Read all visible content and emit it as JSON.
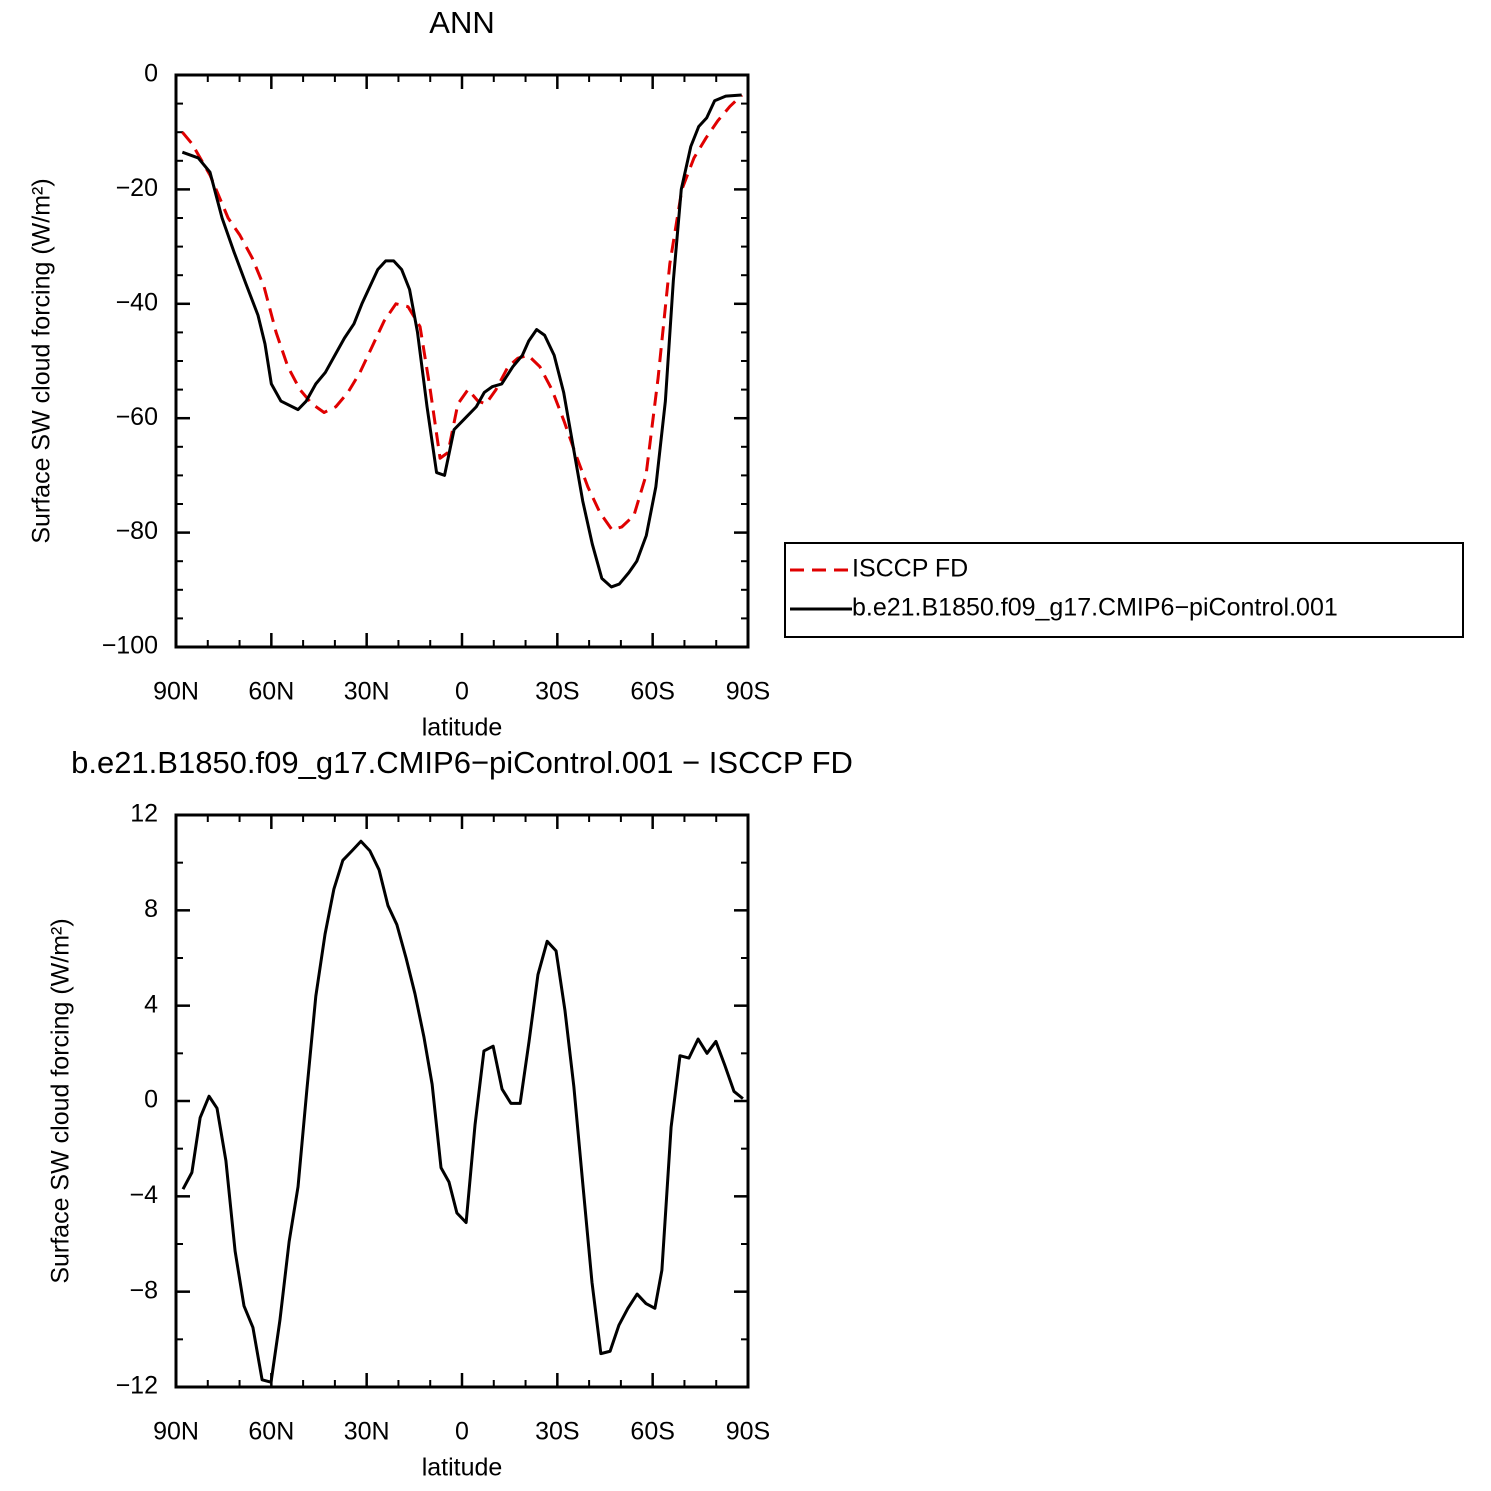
{
  "chart_data": [
    {
      "type": "line",
      "title": "ANN",
      "xlabel": "latitude",
      "ylabel": "Surface SW cloud forcing (W/m²)",
      "xlim": [
        90,
        -90
      ],
      "ylim": [
        -100,
        0
      ],
      "xticks": [
        {
          "value": 90,
          "label": "90N"
        },
        {
          "value": 60,
          "label": "60N"
        },
        {
          "value": 30,
          "label": "30N"
        },
        0,
        {
          "value": -30,
          "label": "30S"
        },
        {
          "value": -60,
          "label": "60S"
        },
        {
          "value": -90,
          "label": "90S"
        }
      ],
      "yticks": [
        0,
        {
          "value": -20,
          "label": "−20"
        },
        {
          "value": -40,
          "label": "−40"
        },
        {
          "value": -60,
          "label": "−60"
        },
        {
          "value": -80,
          "label": "−80"
        },
        {
          "value": -100,
          "label": "−100"
        }
      ],
      "legend": "right",
      "series": [
        {
          "name": "ISCCP FD",
          "color": "#e00000",
          "dash": true,
          "x": [
            88,
            85,
            79.3,
            73.6,
            69.9,
            66,
            62.3,
            58.5,
            54.8,
            51,
            47.2,
            43.4,
            39.7,
            35.9,
            32.1,
            28.3,
            24.5,
            20.8,
            17,
            13.2,
            10,
            6.9,
            4.4,
            1.3,
            -1.9,
            -5,
            -7.5,
            -10.7,
            -14.5,
            -17.6,
            -20.8,
            -24.5,
            -28.3,
            -32.1,
            -35.9,
            -39.6,
            -43.4,
            -47.2,
            -50.3,
            -54.1,
            -57.9,
            -61.7,
            -65.4,
            -69.2,
            -73,
            -76.8,
            -80.5,
            -84.3,
            -88.1
          ],
          "values": [
            -10,
            -12,
            -17.5,
            -25,
            -28,
            -32,
            -37,
            -45,
            -51,
            -55,
            -57.5,
            -59,
            -58,
            -55.5,
            -52,
            -47.5,
            -43,
            -40,
            -40.5,
            -44,
            -55,
            -67,
            -66,
            -57.5,
            -55,
            -57,
            -57.5,
            -55,
            -51,
            -49.5,
            -49,
            -51,
            -55,
            -60.5,
            -66.5,
            -72,
            -76.5,
            -79.5,
            -79,
            -77,
            -70,
            -53,
            -33,
            -20,
            -14.5,
            -11,
            -8,
            -5.5,
            -3.5
          ]
        },
        {
          "name": "b.e21.B1850.f09_g17.CMIP6−piControl.001",
          "color": "#000000",
          "dash": false,
          "x": [
            88,
            83,
            79.3,
            75.5,
            71.7,
            68,
            64.2,
            62,
            60,
            57,
            51.6,
            49,
            46,
            43,
            40,
            37,
            34,
            31.5,
            29,
            26.5,
            24,
            21.5,
            19,
            16.5,
            14,
            11,
            8,
            5.5,
            2.5,
            -1,
            -4.5,
            -7,
            -9.5,
            -12.5,
            -16,
            -19,
            -21,
            -23.5,
            -26,
            -29,
            -32,
            -35,
            -38,
            -41,
            -44,
            -47,
            -49.5,
            -52.5,
            -55,
            -58,
            -61,
            -64,
            -66.5,
            -69,
            -72,
            -74.5,
            -77,
            -79.5,
            -83,
            -88
          ],
          "values": [
            -13.5,
            -14.5,
            -17,
            -25,
            -31,
            -36.5,
            -42,
            -47,
            -54,
            -57,
            -58.5,
            -57,
            -54,
            -52,
            -49,
            -46,
            -43.5,
            -40,
            -37,
            -34,
            -32.5,
            -32.5,
            -34,
            -37.5,
            -45,
            -58,
            -69.5,
            -70,
            -62,
            -60,
            -58,
            -55.5,
            -54.5,
            -54,
            -51,
            -49,
            -46.5,
            -44.5,
            -45.5,
            -49,
            -55.5,
            -65,
            -74.5,
            -82,
            -88,
            -89.5,
            -89,
            -87,
            -85,
            -80.5,
            -72,
            -57,
            -36,
            -20,
            -12.5,
            -9,
            -7.5,
            -4.5,
            -3.7,
            -3.5
          ]
        }
      ]
    },
    {
      "type": "line",
      "title": "b.e21.B1850.f09_g17.CMIP6−piControl.001 − ISCCP FD",
      "xlabel": "latitude",
      "ylabel": "Surface SW cloud forcing (W/m²)",
      "xlim": [
        90,
        -90
      ],
      "ylim": [
        -12,
        12
      ],
      "xticks": [
        {
          "value": 90,
          "label": "90N"
        },
        {
          "value": 60,
          "label": "60N"
        },
        {
          "value": 30,
          "label": "30N"
        },
        0,
        {
          "value": -30,
          "label": "30S"
        },
        {
          "value": -60,
          "label": "60S"
        },
        {
          "value": -90,
          "label": "90S"
        }
      ],
      "yticks": [
        12,
        8,
        4,
        0,
        {
          "value": -4,
          "label": "−4"
        },
        {
          "value": -8,
          "label": "−8"
        },
        {
          "value": -12,
          "label": "−12"
        }
      ],
      "color": "#000000",
      "x": [
        87.8,
        85,
        82.4,
        79.6,
        77.1,
        74.3,
        71.4,
        68.6,
        65.8,
        62.9,
        60.1,
        57.3,
        54.4,
        51.6,
        48.8,
        46,
        43.1,
        40.3,
        37.5,
        34.6,
        31.8,
        29,
        26.1,
        23.3,
        20.5,
        17.6,
        14.8,
        12,
        9.4,
        6.6,
        4.1,
        1.6,
        -1.3,
        -4.1,
        -6.9,
        -9.8,
        -12.6,
        -15.4,
        -18.3,
        -21.1,
        -23.9,
        -26.8,
        -29.6,
        -32.4,
        -35.2,
        -38.1,
        -40.9,
        -43.7,
        -46.6,
        -49.4,
        -52.2,
        -55.1,
        -57.9,
        -60.7,
        -62.9,
        -65.8,
        -68.6,
        -71.4,
        -74.3,
        -77.1,
        -79.9,
        -82.7,
        -85.6,
        -88.4
      ],
      "values": [
        -3.7,
        -3,
        -0.7,
        0.2,
        -0.3,
        -2.5,
        -6.3,
        -8.6,
        -9.5,
        -11.7,
        -11.8,
        -9.2,
        -5.9,
        -3.6,
        0.5,
        4.4,
        7,
        8.9,
        10.1,
        10.5,
        10.9,
        10.5,
        9.7,
        8.2,
        7.4,
        6,
        4.5,
        2.7,
        0.7,
        -2.8,
        -3.4,
        -4.7,
        -5.1,
        -1,
        2.1,
        2.3,
        0.5,
        -0.1,
        -0.1,
        2.5,
        5.3,
        6.7,
        6.3,
        3.8,
        0.6,
        -3.6,
        -7.6,
        -10.6,
        -10.5,
        -9.4,
        -8.7,
        -8.1,
        -8.5,
        -8.7,
        -7.1,
        -1.1,
        1.9,
        1.8,
        2.6,
        2,
        2.5,
        1.5,
        0.4,
        0.1
      ]
    }
  ]
}
